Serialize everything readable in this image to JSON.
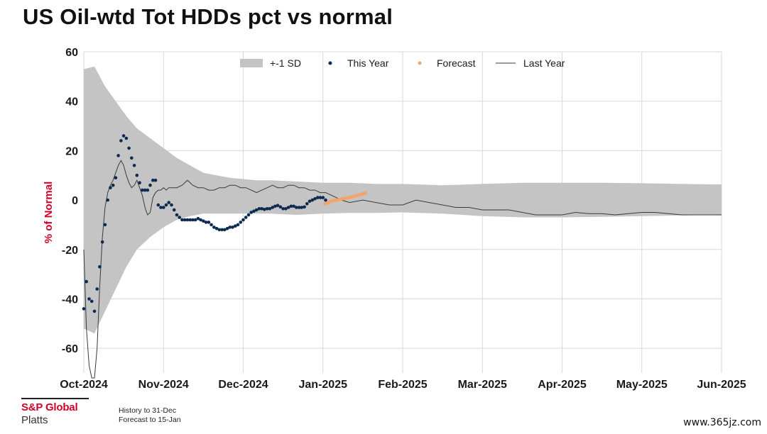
{
  "page": {
    "title": "US Oil-wtd Tot HDDs pct vs normal",
    "footer": {
      "brand_top": "S&P Global",
      "brand_bottom": "Platts",
      "note_1": "History to 31-Dec",
      "note_2": "Forecast to 15-Jan"
    },
    "watermark": "www.365jz.com"
  },
  "chart_data": {
    "type": "line",
    "title": "US Oil-wtd Tot HDDs pct vs normal",
    "xlabel": "",
    "ylabel": "% of Normal",
    "ylim": [
      -70,
      60
    ],
    "y_ticks": [
      60,
      40,
      20,
      0,
      -20,
      -40,
      -60
    ],
    "x_ticks": [
      "Oct-2024",
      "Nov-2024",
      "Dec-2024",
      "Jan-2025",
      "Feb-2025",
      "Mar-2025",
      "Apr-2025",
      "May-2025",
      "Jun-2025"
    ],
    "grid": true,
    "legend_position": "top",
    "legend": [
      "+-1 SD",
      "This Year",
      "Forecast",
      "Last Year"
    ],
    "colors": {
      "sd_band": "#c4c4c4",
      "this_year": "#0d2a52",
      "forecast": "#f4a36b",
      "last_year": "#3a3a3a",
      "ylabel": "#d0022a",
      "grid": "#d9d9d9"
    },
    "sd_band": {
      "x": [
        0,
        4,
        8,
        12,
        16,
        20,
        25,
        30,
        35,
        40,
        45,
        50,
        55,
        60,
        65,
        70,
        80,
        90,
        100,
        110,
        120,
        135,
        150,
        165,
        180,
        195,
        210,
        225,
        240
      ],
      "upper": [
        53,
        54,
        46,
        40,
        34,
        29,
        25,
        21,
        17,
        14,
        11,
        10,
        9,
        8.5,
        8,
        8,
        7.5,
        7,
        7,
        6.5,
        6.5,
        6,
        6.5,
        7,
        7,
        7,
        6.8,
        6.5,
        6.3
      ],
      "lower": [
        -52,
        -54,
        -45,
        -36,
        -27,
        -20,
        -15,
        -11,
        -8,
        -6.5,
        -5.5,
        -5.5,
        -5.5,
        -5.5,
        -5.5,
        -5.5,
        -6,
        -5.5,
        -5.2,
        -5.2,
        -5,
        -5.5,
        -6.5,
        -7,
        -7,
        -6.8,
        -6.5,
        -6.2,
        -6
      ]
    },
    "last_year": {
      "x": [
        0,
        1,
        2,
        3,
        4,
        5,
        6,
        7,
        8,
        9,
        10,
        11,
        12,
        13,
        14,
        15,
        16,
        17,
        18,
        19,
        20,
        21,
        22,
        23,
        24,
        25,
        26,
        27,
        28,
        29,
        30,
        31,
        32,
        33,
        35,
        37,
        39,
        41,
        43,
        45,
        47,
        49,
        51,
        53,
        55,
        57,
        59,
        61,
        63,
        65,
        67,
        69,
        71,
        73,
        75,
        77,
        79,
        81,
        83,
        85,
        87,
        89,
        91,
        93,
        95,
        97,
        100,
        105,
        110,
        115,
        120,
        125,
        130,
        135,
        140,
        145,
        150,
        155,
        160,
        165,
        170,
        175,
        180,
        185,
        190,
        195,
        200,
        205,
        210,
        215,
        220,
        225,
        230,
        235,
        240
      ],
      "y": [
        -20,
        -52,
        -67,
        -72,
        -72,
        -60,
        -35,
        -15,
        -3,
        3,
        6,
        8,
        11,
        14,
        16,
        14,
        10,
        7,
        5,
        6,
        8,
        5,
        2,
        -3,
        -6,
        -5,
        1,
        3,
        4,
        4,
        5,
        4,
        5,
        5,
        5,
        6,
        8,
        6,
        5,
        5,
        4,
        4,
        5,
        5,
        6,
        6,
        5,
        5,
        4,
        3,
        4,
        5,
        6,
        5,
        5,
        6,
        6,
        5,
        5,
        4,
        4,
        3,
        3,
        2,
        1,
        0,
        -1,
        0,
        -1,
        -2,
        -2,
        0,
        -1,
        -2,
        -3,
        -3,
        -4,
        -4,
        -4,
        -5,
        -6,
        -6,
        -6,
        -5,
        -5.5,
        -5.5,
        -6,
        -5.5,
        -5,
        -5,
        -5.5,
        -6,
        -6,
        -6,
        -6
      ]
    },
    "this_year": {
      "x": [
        0,
        1,
        2,
        3,
        4,
        5,
        6,
        7,
        8,
        9,
        10,
        11,
        12,
        13,
        14,
        15,
        16,
        17,
        18,
        19,
        20,
        21,
        22,
        23,
        24,
        25,
        26,
        27,
        28,
        29,
        30,
        31,
        32,
        33,
        34,
        35,
        36,
        37,
        38,
        39,
        40,
        41,
        42,
        43,
        44,
        45,
        46,
        47,
        48,
        49,
        50,
        51,
        52,
        53,
        54,
        55,
        56,
        57,
        58,
        59,
        60,
        61,
        62,
        63,
        64,
        65,
        66,
        67,
        68,
        69,
        70,
        71,
        72,
        73,
        74,
        75,
        76,
        77,
        78,
        79,
        80,
        81,
        82,
        83,
        84,
        85,
        86,
        87,
        88,
        89,
        90,
        91
      ],
      "y": [
        -44,
        -33,
        -40,
        -41,
        -45,
        -36,
        -27,
        -17,
        -10,
        0,
        5,
        6,
        9,
        18,
        24,
        26,
        25,
        21,
        17,
        14,
        10,
        7,
        4,
        4,
        4,
        6,
        8,
        8,
        -2,
        -3,
        -3,
        -2,
        -1,
        -2,
        -4,
        -6,
        -7,
        -8,
        -8,
        -8,
        -8,
        -8,
        -8,
        -7.5,
        -8,
        -8.5,
        -9,
        -9,
        -10,
        -11,
        -11.5,
        -12,
        -12,
        -12,
        -11.5,
        -11,
        -11,
        -10.5,
        -10,
        -9,
        -8,
        -7,
        -6,
        -5,
        -4.5,
        -4,
        -3.5,
        -3.5,
        -3.8,
        -3.5,
        -3.5,
        -3,
        -2.5,
        -2.2,
        -2.8,
        -3.5,
        -3.5,
        -3,
        -2.5,
        -2.5,
        -3,
        -3,
        -3,
        -2.8,
        -1.5,
        -0.5,
        0,
        0.5,
        1,
        1,
        1,
        0
      ]
    },
    "forecast": {
      "x": [
        91,
        92,
        93,
        94,
        95,
        96,
        97,
        98,
        99,
        100,
        101,
        102,
        103,
        104,
        105,
        106
      ],
      "y": [
        -1.5,
        -1,
        -0.5,
        -0.2,
        0,
        0.2,
        0.4,
        0.6,
        0.8,
        1,
        1.3,
        1.6,
        1.9,
        2.2,
        2.5,
        2.9
      ]
    }
  }
}
